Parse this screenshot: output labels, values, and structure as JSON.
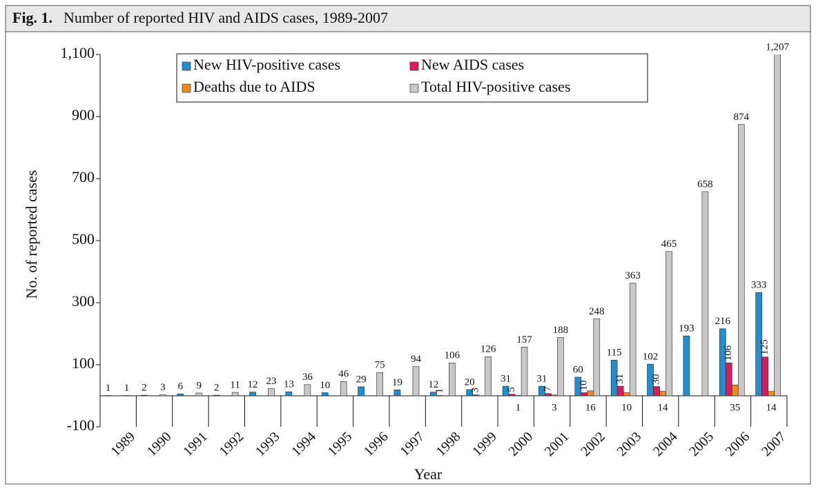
{
  "chart_data": {
    "type": "bar",
    "figure_label": "Fig. 1.",
    "title": "Number of reported HIV and AIDS cases, 1989-2007",
    "x_label": "Year",
    "y_label": "No. of reported cases",
    "categories": [
      "1989",
      "1990",
      "1991",
      "1992",
      "1993",
      "1994",
      "1995",
      "1996",
      "1997",
      "1998",
      "1999",
      "2000",
      "2001",
      "2002",
      "2003",
      "2004",
      "2005",
      "2006",
      "2007"
    ],
    "series": [
      {
        "name": "New HIV-positive cases",
        "color": "#1f8fd0",
        "values": [
          1,
          2,
          6,
          2,
          12,
          13,
          10,
          29,
          19,
          12,
          20,
          31,
          31,
          60,
          115,
          102,
          193,
          216,
          333
        ]
      },
      {
        "name": "New AIDS cases",
        "color": "#e0195a",
        "values": [
          null,
          null,
          null,
          null,
          null,
          null,
          null,
          null,
          null,
          1,
          3,
          5,
          7,
          10,
          31,
          30,
          null,
          106,
          125
        ]
      },
      {
        "name": "Deaths due to AIDS",
        "color": "#f08a1c",
        "values": [
          null,
          null,
          null,
          null,
          null,
          null,
          null,
          null,
          null,
          null,
          null,
          1,
          3,
          16,
          10,
          14,
          null,
          35,
          14
        ]
      },
      {
        "name": "Total HIV-positive cases",
        "color": "#c8c8c8",
        "values": [
          1,
          3,
          9,
          11,
          23,
          36,
          46,
          75,
          94,
          106,
          126,
          157,
          188,
          248,
          363,
          465,
          658,
          874,
          1207
        ],
        "value_labels": [
          "1",
          "3",
          "9",
          "11",
          "23",
          "36",
          "46",
          "75",
          "94",
          "106",
          "126",
          "157",
          "188",
          "248",
          "363",
          "465",
          "658",
          "874",
          "1,207"
        ]
      }
    ],
    "ylim": [
      -100,
      1100
    ],
    "yticks": [
      -100,
      100,
      300,
      500,
      700,
      900,
      {
        "value": 1100,
        "label": "1,100"
      }
    ],
    "legend": "top"
  }
}
